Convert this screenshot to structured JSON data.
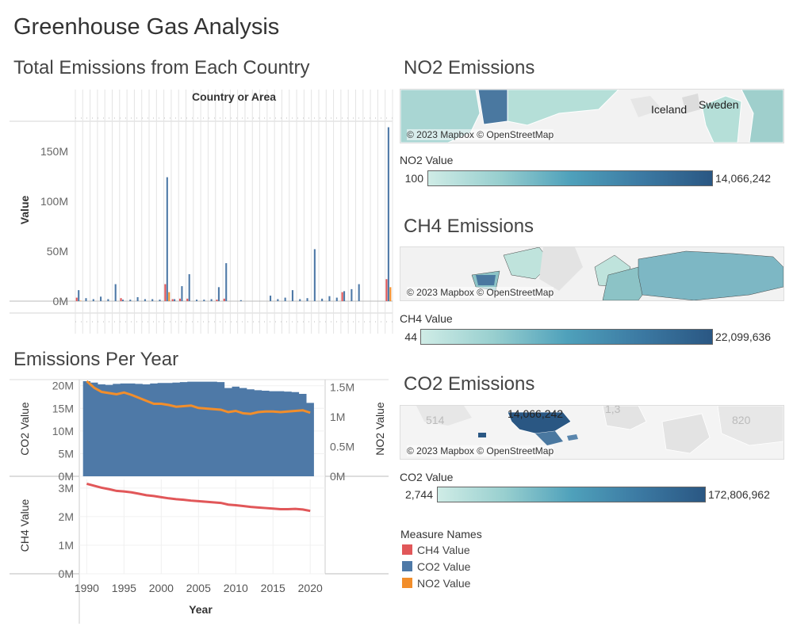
{
  "page": {
    "title": "Greenhouse Gas Analysis"
  },
  "sections": {
    "total": "Total Emissions from Each Country",
    "per_year": "Emissions Per Year",
    "no2": "NO2 Emissions",
    "ch4": "CH4 Emissions",
    "co2": "CO2 Emissions"
  },
  "colors": {
    "ch4": "#e15759",
    "co2": "#4e79a7",
    "no2": "#f28e2b"
  },
  "maps": {
    "attribution": "© 2023 Mapbox © OpenStreetMap",
    "no2": {
      "labels": [
        "Iceland",
        "Sweden"
      ]
    },
    "co2": {
      "labels": [
        "14,066,242",
        "514",
        "1,3",
        "820"
      ]
    }
  },
  "legends": {
    "no2": {
      "title": "NO2 Value",
      "min": "100",
      "max": "14,066,242"
    },
    "ch4": {
      "title": "CH4 Value",
      "min": "44",
      "max": "22,099,636"
    },
    "co2": {
      "title": "CO2 Value",
      "min": "2,744",
      "max": "172,806,962"
    },
    "measure_names": {
      "title": "Measure Names",
      "items": [
        {
          "label": "CH4 Value",
          "color": "#e15759"
        },
        {
          "label": "CO2 Value",
          "color": "#4e79a7"
        },
        {
          "label": "NO2 Value",
          "color": "#f28e2b"
        }
      ]
    }
  },
  "chart_data": [
    {
      "type": "bar",
      "title": "Total Emissions from Each Country",
      "xlabel": "Country or Area",
      "ylabel": "Value",
      "ylim": [
        0,
        180000000
      ],
      "yticks": [
        "0M",
        "50M",
        "100M",
        "150M"
      ],
      "n_categories": 43,
      "series": [
        {
          "name": "CH4 Value",
          "values": [
            3500000,
            0,
            0,
            0,
            0,
            0,
            3000000,
            0,
            0,
            0,
            0,
            0,
            17000000,
            2000000,
            2500000,
            2500000,
            0,
            0,
            0,
            1500000,
            2500000,
            0,
            0,
            0,
            0,
            0,
            0,
            0,
            0,
            0,
            0,
            0,
            0,
            0,
            0,
            0,
            9000000,
            0,
            0,
            0,
            0,
            0,
            22000000
          ]
        },
        {
          "name": "CO2 Value",
          "values": [
            11000000,
            3000000,
            2000000,
            4500000,
            2000000,
            17000000,
            1500000,
            1500000,
            4000000,
            2000000,
            2000000,
            1500000,
            124000000,
            2000000,
            15000000,
            27000000,
            1500000,
            1500000,
            2000000,
            14000000,
            38000000,
            0,
            1000000,
            0,
            0,
            0,
            5500000,
            2000000,
            3500000,
            11000000,
            2000000,
            3000000,
            52000000,
            2500000,
            5000000,
            3500000,
            10000000,
            12000000,
            17000000,
            0,
            0,
            0,
            174000000
          ]
        },
        {
          "name": "NO2 Value",
          "values": [
            500000,
            0,
            0,
            0,
            0,
            0,
            0,
            0,
            0,
            0,
            0,
            0,
            9000000,
            0,
            0,
            0,
            0,
            0,
            0,
            0,
            0,
            0,
            0,
            0,
            0,
            0,
            0,
            0,
            0,
            0,
            0,
            0,
            0,
            0,
            0,
            0,
            0,
            0,
            0,
            0,
            0,
            0,
            14000000
          ]
        }
      ]
    },
    {
      "type": "area",
      "title": "Emissions Per Year",
      "xlabel": "Year",
      "ylabel": "CO2 Value",
      "y2label": "NO2 Value",
      "x": [
        1990,
        1991,
        1992,
        1993,
        1994,
        1995,
        1996,
        1997,
        1998,
        1999,
        2000,
        2001,
        2002,
        2003,
        2004,
        2005,
        2006,
        2007,
        2008,
        2009,
        2010,
        2011,
        2012,
        2013,
        2014,
        2015,
        2016,
        2017,
        2018,
        2019,
        2020
      ],
      "xticks": [
        "1990",
        "1995",
        "2000",
        "2005",
        "2010",
        "2015",
        "2020"
      ],
      "ylim": [
        0,
        21000000
      ],
      "yticks": [
        "20M",
        "15M",
        "10M",
        "5M",
        "0M"
      ],
      "y2lim": [
        0,
        1600000
      ],
      "y2ticks": [
        "1.5M",
        "1M",
        "0.5M",
        "0M"
      ],
      "series": [
        {
          "name": "CO2 Value",
          "values": [
            21000000,
            20700000,
            20300000,
            20200000,
            20400000,
            20500000,
            20500000,
            20400000,
            20300000,
            20500000,
            20600000,
            20600000,
            20700000,
            20800000,
            20900000,
            20900000,
            20900000,
            20900000,
            20800000,
            19500000,
            19800000,
            19500000,
            19200000,
            19000000,
            18900000,
            18800000,
            18800000,
            18700000,
            18600000,
            18200000,
            16200000
          ]
        },
        {
          "name": "NO2 Value",
          "values": [
            1600000,
            1490000,
            1420000,
            1400000,
            1380000,
            1410000,
            1370000,
            1320000,
            1270000,
            1220000,
            1220000,
            1200000,
            1170000,
            1180000,
            1190000,
            1150000,
            1140000,
            1130000,
            1120000,
            1080000,
            1100000,
            1060000,
            1050000,
            1080000,
            1090000,
            1090000,
            1080000,
            1090000,
            1100000,
            1110000,
            1070000
          ]
        }
      ]
    },
    {
      "type": "line",
      "xlabel": "Year",
      "ylabel": "CH4 Value",
      "x": [
        1990,
        1991,
        1992,
        1993,
        1994,
        1995,
        1996,
        1997,
        1998,
        1999,
        2000,
        2001,
        2002,
        2003,
        2004,
        2005,
        2006,
        2007,
        2008,
        2009,
        2010,
        2011,
        2012,
        2013,
        2014,
        2015,
        2016,
        2017,
        2018,
        2019,
        2020
      ],
      "ylim": [
        0,
        3300000
      ],
      "yticks": [
        "3M",
        "2M",
        "1M",
        "0M"
      ],
      "series": [
        {
          "name": "CH4 Value",
          "values": [
            3150000,
            3080000,
            3010000,
            2960000,
            2900000,
            2880000,
            2850000,
            2800000,
            2750000,
            2720000,
            2680000,
            2640000,
            2610000,
            2590000,
            2560000,
            2540000,
            2520000,
            2500000,
            2480000,
            2420000,
            2400000,
            2370000,
            2340000,
            2320000,
            2300000,
            2280000,
            2260000,
            2260000,
            2270000,
            2250000,
            2200000
          ]
        }
      ]
    }
  ]
}
